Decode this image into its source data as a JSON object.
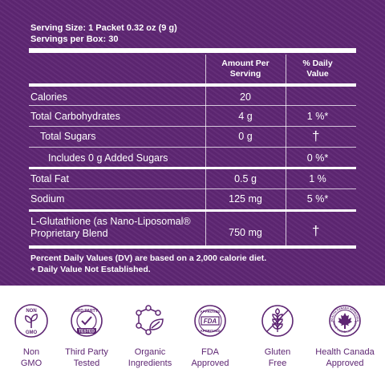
{
  "serving": {
    "size": "Serving Size: 1 Packet 0.32 oz (9 g)",
    "per_box": "Servings per Box: 30"
  },
  "headers": {
    "amount": [
      "Amount Per",
      "Serving"
    ],
    "daily_value": [
      "% Daily",
      "Value"
    ]
  },
  "rows": [
    {
      "name": "Calories",
      "amount": "20",
      "dv": ""
    },
    {
      "name": "Total Carbohydrates",
      "amount": "4 g",
      "dv": "1 %*"
    },
    {
      "name": "Total Sugars",
      "amount": "0 g",
      "dv": "†"
    },
    {
      "name": "Includes 0 g Added Sugars",
      "amount": "",
      "dv": "0 %*"
    },
    {
      "name": "Total Fat",
      "amount": "0.5 g",
      "dv": "1 %"
    },
    {
      "name": "Sodium",
      "amount": "125 mg",
      "dv": "5 %*"
    }
  ],
  "glutathione": {
    "line1": "L-Glutathione (as Nano-Liposomal®",
    "line2": "Proprietary Blend",
    "amount": "750 mg",
    "dv": "†"
  },
  "footnotes": [
    "Percent Daily Values (DV) are based on a 2,000 calorie diet.",
    "+ Daily Value Not Established."
  ],
  "badges": [
    {
      "icon": "non-gmo-icon",
      "line1": "Non",
      "line2": "GMO",
      "icon_text": [
        "NON",
        "GMO"
      ]
    },
    {
      "icon": "third-party-tested-icon",
      "line1": "Third Party",
      "line2": "Tested",
      "icon_text": [
        "3RD PARTY",
        "TESTED"
      ]
    },
    {
      "icon": "organic-molecule-leaf-icon",
      "line1": "Organic",
      "line2": "Ingredients"
    },
    {
      "icon": "fda-approved-icon",
      "line1": "FDA",
      "line2": "Approved",
      "icon_text": [
        "APPROVED",
        "FDA",
        "APPROVED"
      ]
    },
    {
      "icon": "gluten-free-wheat-icon",
      "line1": "Gluten",
      "line2": "Free"
    },
    {
      "icon": "health-canada-maple-leaf-icon",
      "line1": "Health Canada",
      "line2": "Approved",
      "icon_text": [
        "HEALTH CANADA APPROVED",
        "SANTÉ CANADA APPROUVÉ"
      ]
    }
  ],
  "colors": {
    "purple": "#5e2673",
    "white": "#ffffff"
  }
}
